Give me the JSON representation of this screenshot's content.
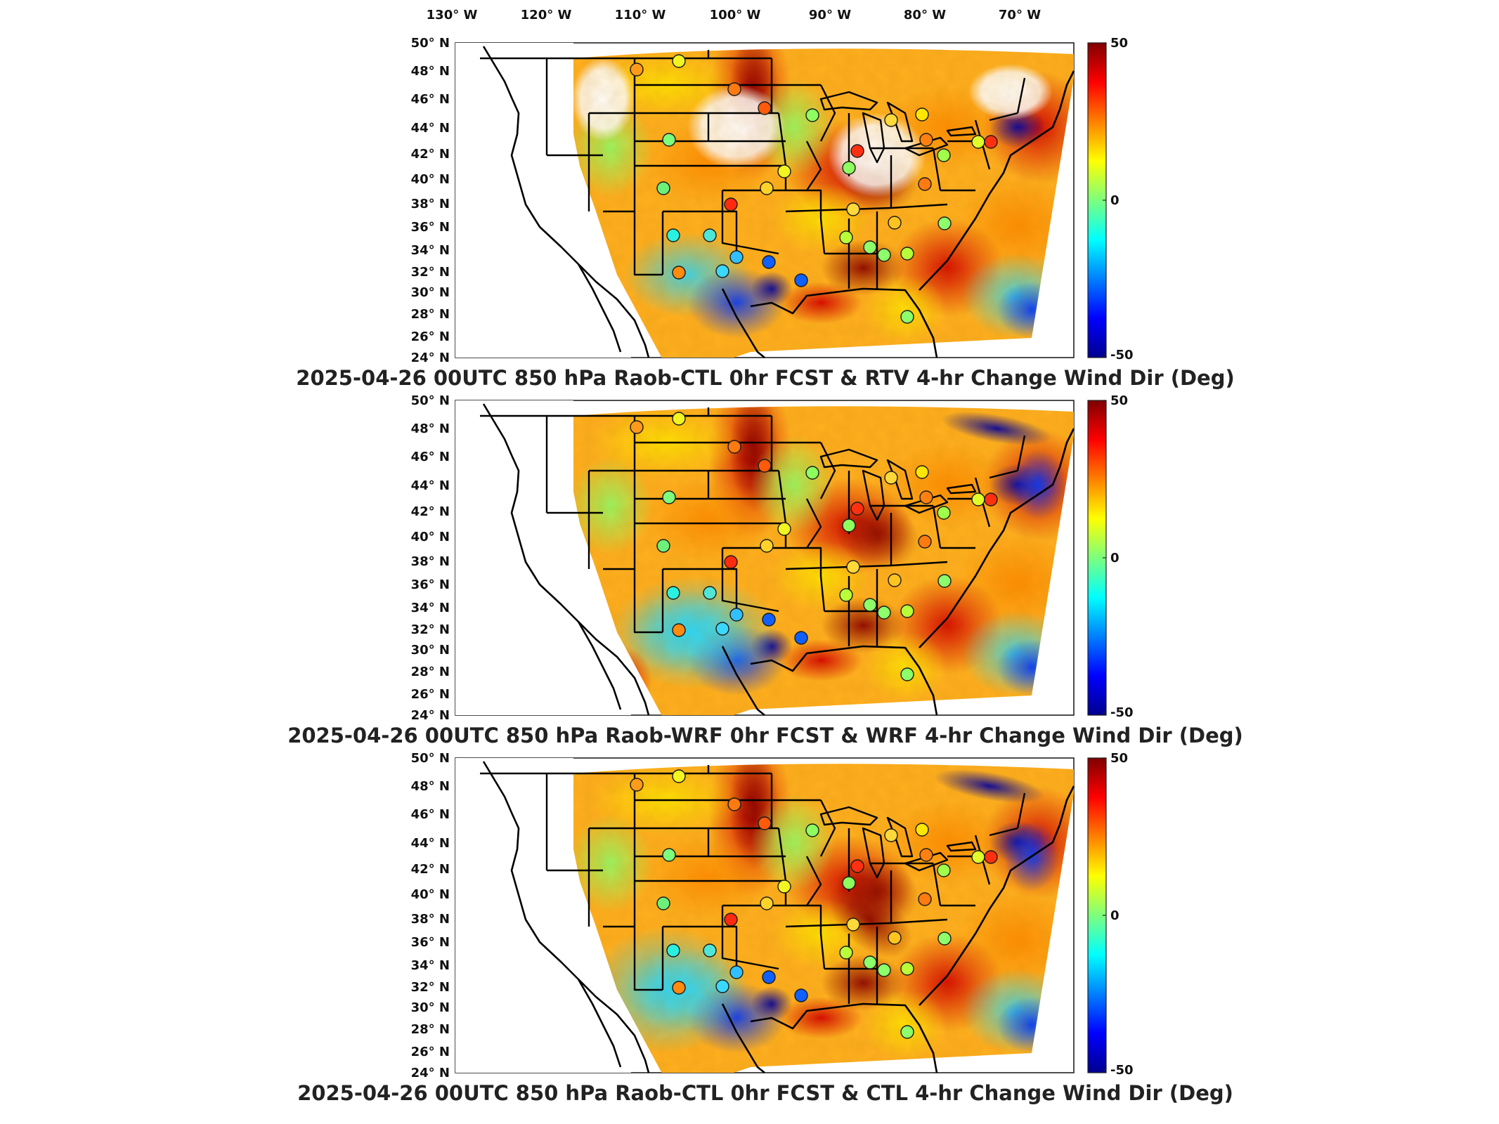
{
  "figure": {
    "lon_labels": [
      "130° W",
      "120° W",
      "110° W",
      "100° W",
      "90° W",
      "80° W",
      "70° W"
    ],
    "lat_labels": [
      "50° N",
      "48° N",
      "46° N",
      "44° N",
      "42° N",
      "40° N",
      "38° N",
      "36° N",
      "34° N",
      "32° N",
      "30° N",
      "28° N",
      "26° N",
      "24° N"
    ],
    "colorbar": {
      "max_label": "50",
      "mid_label": "0",
      "min_label": "-50",
      "range": [
        -50,
        50
      ],
      "colormap": "jet"
    }
  },
  "panels": [
    {
      "title": "2025-04-26 00UTC 850 hPa Raob-CTL 0hr FCST & RTV 4-hr Change Wind Dir (Deg)"
    },
    {
      "title": "2025-04-26 00UTC 850 hPa Raob-WRF 0hr FCST & WRF 4-hr Change Wind Dir (Deg)"
    },
    {
      "title": "2025-04-26 00UTC 850 hPa Raob-CTL 0hr FCST & CTL 4-hr Change Wind Dir (Deg)"
    }
  ],
  "colors": {
    "jet_dark_blue": "#00008f",
    "jet_blue": "#0000ff",
    "jet_cyan": "#00ffff",
    "jet_yellow": "#ffff00",
    "jet_red": "#ff0000",
    "jet_dark_red": "#800000"
  }
}
